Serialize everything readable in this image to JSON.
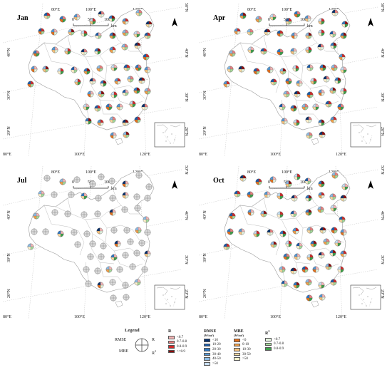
{
  "panels": [
    {
      "id": "jan",
      "label": "Jan",
      "origin": [
        0,
        0
      ],
      "grid": {
        "top": [
          "80°E",
          "100°E",
          "120°E"
        ],
        "bottom": [
          "80°E",
          "100°E",
          "120°E"
        ],
        "left": [
          "40°N",
          "30°N",
          "20°N"
        ],
        "right": [
          "50°N",
          "40°N",
          "30°N",
          "20°N"
        ]
      },
      "scale": {
        "ticks": [
          "0",
          "500",
          "1000"
        ],
        "unit": "km"
      },
      "stations": [
        [
          66,
          22
        ],
        [
          88,
          27
        ],
        [
          108,
          24
        ],
        [
          130,
          30
        ],
        [
          142,
          20
        ],
        [
          157,
          26
        ],
        [
          176,
          30
        ],
        [
          195,
          18
        ],
        [
          209,
          34
        ],
        [
          58,
          44
        ],
        [
          76,
          45
        ],
        [
          100,
          45
        ],
        [
          118,
          47
        ],
        [
          138,
          50
        ],
        [
          158,
          50
        ],
        [
          176,
          46
        ],
        [
          192,
          48
        ],
        [
          207,
          50
        ],
        [
          51,
          75
        ],
        [
          77,
          70
        ],
        [
          95,
          72
        ],
        [
          118,
          73
        ],
        [
          137,
          72
        ],
        [
          158,
          70
        ],
        [
          175,
          66
        ],
        [
          193,
          64
        ],
        [
          205,
          80
        ],
        [
          48,
          97
        ],
        [
          64,
          97
        ],
        [
          85,
          100
        ],
        [
          104,
          98
        ],
        [
          122,
          100
        ],
        [
          140,
          96
        ],
        [
          160,
          95
        ],
        [
          178,
          95
        ],
        [
          194,
          95
        ],
        [
          207,
          98
        ],
        [
          109,
          115
        ],
        [
          130,
          114
        ],
        [
          145,
          117
        ],
        [
          165,
          114
        ],
        [
          183,
          111
        ],
        [
          199,
          113
        ],
        [
          43,
          118
        ],
        [
          127,
          132
        ],
        [
          142,
          132
        ],
        [
          160,
          133
        ],
        [
          176,
          130
        ],
        [
          192,
          127
        ],
        [
          207,
          128
        ],
        [
          121,
          150
        ],
        [
          137,
          152
        ],
        [
          153,
          150
        ],
        [
          168,
          150
        ],
        [
          186,
          146
        ],
        [
          203,
          150
        ],
        [
          124,
          170
        ],
        [
          141,
          172
        ],
        [
          158,
          168
        ],
        [
          176,
          172
        ],
        [
          193,
          168
        ],
        [
          159,
          190
        ],
        [
          177,
          189
        ]
      ]
    },
    {
      "id": "apr",
      "label": "Apr",
      "origin": [
        275,
        0
      ],
      "grid": {
        "top": [
          "80°E",
          "100°E",
          "120°E"
        ],
        "bottom": [
          "80°E",
          "100°E",
          "120°E"
        ],
        "left": [
          "40°N",
          "30°N",
          "20°N"
        ],
        "right": [
          "50°N",
          "40°N",
          "30°N",
          "20°N"
        ]
      },
      "scale": {
        "ticks": [
          "0",
          "500",
          "1000"
        ],
        "unit": "km"
      },
      "stations": [
        [
          66,
          22
        ],
        [
          88,
          27
        ],
        [
          108,
          24
        ],
        [
          130,
          30
        ],
        [
          142,
          20
        ],
        [
          157,
          26
        ],
        [
          176,
          30
        ],
        [
          195,
          18
        ],
        [
          209,
          34
        ],
        [
          58,
          44
        ],
        [
          76,
          45
        ],
        [
          100,
          45
        ],
        [
          118,
          47
        ],
        [
          138,
          50
        ],
        [
          158,
          50
        ],
        [
          176,
          46
        ],
        [
          192,
          48
        ],
        [
          207,
          50
        ],
        [
          51,
          75
        ],
        [
          77,
          70
        ],
        [
          95,
          72
        ],
        [
          118,
          73
        ],
        [
          137,
          72
        ],
        [
          158,
          70
        ],
        [
          175,
          66
        ],
        [
          193,
          64
        ],
        [
          205,
          80
        ],
        [
          48,
          97
        ],
        [
          64,
          97
        ],
        [
          85,
          100
        ],
        [
          104,
          98
        ],
        [
          122,
          100
        ],
        [
          140,
          96
        ],
        [
          160,
          95
        ],
        [
          178,
          95
        ],
        [
          194,
          95
        ],
        [
          207,
          98
        ],
        [
          109,
          115
        ],
        [
          130,
          114
        ],
        [
          145,
          117
        ],
        [
          165,
          114
        ],
        [
          183,
          111
        ],
        [
          199,
          113
        ],
        [
          43,
          118
        ],
        [
          127,
          132
        ],
        [
          142,
          132
        ],
        [
          160,
          133
        ],
        [
          176,
          130
        ],
        [
          192,
          127
        ],
        [
          207,
          128
        ],
        [
          121,
          150
        ],
        [
          137,
          152
        ],
        [
          153,
          150
        ],
        [
          168,
          150
        ],
        [
          186,
          146
        ],
        [
          203,
          150
        ],
        [
          124,
          170
        ],
        [
          141,
          172
        ],
        [
          158,
          168
        ],
        [
          176,
          172
        ],
        [
          193,
          168
        ],
        [
          159,
          190
        ],
        [
          177,
          189
        ]
      ]
    },
    {
      "id": "jul",
      "label": "Jul",
      "origin": [
        0,
        228
      ],
      "grid": {
        "top": [
          "80°E",
          "100°E",
          "120°E"
        ],
        "bottom": [
          "80°E",
          "100°E",
          "120°E"
        ],
        "left": [
          "40°N",
          "30°N",
          "20°N"
        ],
        "right": [
          "50°N",
          "40°N",
          "30°N",
          "20°N"
        ]
      },
      "scale": {
        "ticks": [
          "0",
          "500",
          "1000"
        ],
        "unit": "km"
      },
      "stations": [
        [
          66,
          22
        ],
        [
          88,
          27
        ],
        [
          108,
          24
        ],
        [
          130,
          30
        ],
        [
          142,
          20
        ],
        [
          157,
          26
        ],
        [
          176,
          30
        ],
        [
          195,
          18
        ],
        [
          209,
          34
        ],
        [
          58,
          44
        ],
        [
          76,
          45
        ],
        [
          100,
          45
        ],
        [
          118,
          47
        ],
        [
          138,
          50
        ],
        [
          158,
          50
        ],
        [
          176,
          46
        ],
        [
          192,
          48
        ],
        [
          207,
          50
        ],
        [
          51,
          75
        ],
        [
          77,
          70
        ],
        [
          95,
          72
        ],
        [
          118,
          73
        ],
        [
          137,
          72
        ],
        [
          158,
          70
        ],
        [
          175,
          66
        ],
        [
          193,
          64
        ],
        [
          205,
          80
        ],
        [
          48,
          97
        ],
        [
          64,
          97
        ],
        [
          85,
          100
        ],
        [
          104,
          98
        ],
        [
          122,
          100
        ],
        [
          140,
          96
        ],
        [
          160,
          95
        ],
        [
          178,
          95
        ],
        [
          194,
          95
        ],
        [
          207,
          98
        ],
        [
          109,
          115
        ],
        [
          130,
          114
        ],
        [
          145,
          117
        ],
        [
          165,
          114
        ],
        [
          183,
          111
        ],
        [
          199,
          113
        ],
        [
          43,
          118
        ],
        [
          127,
          132
        ],
        [
          142,
          132
        ],
        [
          160,
          133
        ],
        [
          176,
          130
        ],
        [
          192,
          127
        ],
        [
          207,
          128
        ],
        [
          121,
          150
        ],
        [
          137,
          152
        ],
        [
          153,
          150
        ],
        [
          168,
          150
        ],
        [
          186,
          146
        ],
        [
          203,
          150
        ],
        [
          124,
          170
        ],
        [
          141,
          172
        ],
        [
          158,
          168
        ],
        [
          176,
          172
        ],
        [
          193,
          168
        ],
        [
          159,
          190
        ],
        [
          177,
          189
        ]
      ]
    },
    {
      "id": "oct",
      "label": "Oct",
      "origin": [
        275,
        228
      ],
      "grid": {
        "top": [
          "80°E",
          "100°E",
          "120°E"
        ],
        "bottom": [
          "80°E",
          "100°E",
          "120°E"
        ],
        "left": [
          "40°N",
          "30°N",
          "20°N"
        ],
        "right": [
          "50°N",
          "40°N",
          "30°N",
          "20°N"
        ]
      },
      "scale": {
        "ticks": [
          "0",
          "500",
          "1000"
        ],
        "unit": "km"
      },
      "stations": [
        [
          66,
          22
        ],
        [
          88,
          27
        ],
        [
          108,
          24
        ],
        [
          130,
          30
        ],
        [
          142,
          20
        ],
        [
          157,
          26
        ],
        [
          176,
          30
        ],
        [
          195,
          18
        ],
        [
          209,
          34
        ],
        [
          58,
          44
        ],
        [
          76,
          45
        ],
        [
          100,
          45
        ],
        [
          118,
          47
        ],
        [
          138,
          50
        ],
        [
          158,
          50
        ],
        [
          176,
          46
        ],
        [
          192,
          48
        ],
        [
          207,
          50
        ],
        [
          51,
          75
        ],
        [
          77,
          70
        ],
        [
          95,
          72
        ],
        [
          118,
          73
        ],
        [
          137,
          72
        ],
        [
          158,
          70
        ],
        [
          175,
          66
        ],
        [
          193,
          64
        ],
        [
          205,
          80
        ],
        [
          48,
          97
        ],
        [
          64,
          97
        ],
        [
          85,
          100
        ],
        [
          104,
          98
        ],
        [
          122,
          100
        ],
        [
          140,
          96
        ],
        [
          160,
          95
        ],
        [
          178,
          95
        ],
        [
          194,
          95
        ],
        [
          207,
          98
        ],
        [
          109,
          115
        ],
        [
          130,
          114
        ],
        [
          145,
          117
        ],
        [
          165,
          114
        ],
        [
          183,
          111
        ],
        [
          199,
          113
        ],
        [
          43,
          118
        ],
        [
          127,
          132
        ],
        [
          142,
          132
        ],
        [
          160,
          133
        ],
        [
          176,
          130
        ],
        [
          192,
          127
        ],
        [
          207,
          128
        ],
        [
          121,
          150
        ],
        [
          137,
          152
        ],
        [
          153,
          150
        ],
        [
          168,
          150
        ],
        [
          186,
          146
        ],
        [
          203,
          150
        ],
        [
          124,
          170
        ],
        [
          141,
          172
        ],
        [
          158,
          168
        ],
        [
          176,
          172
        ],
        [
          193,
          168
        ],
        [
          159,
          190
        ],
        [
          177,
          189
        ]
      ]
    }
  ],
  "legend": {
    "title": "Legend",
    "key": {
      "rmse": "RMSE",
      "r": "R",
      "mbe": "MBE",
      "r2": "R",
      "r2_sup": "2"
    },
    "r": {
      "title": "R",
      "items": [
        {
          "label": "<0.7",
          "color": "#f4b6b6"
        },
        {
          "label": "0.7-0.8",
          "color": "#e98080"
        },
        {
          "label": "0.8-0.9",
          "color": "#d02a2a"
        },
        {
          "label": ">=0.9",
          "color": "#8e0d0d"
        }
      ]
    },
    "rmse": {
      "title": "RMSE",
      "unit": "(W/m²)",
      "items": [
        {
          "label": "<10",
          "color": "#08306b"
        },
        {
          "label": "10-20",
          "color": "#1a5ba8"
        },
        {
          "label": "20-30",
          "color": "#2f78c2"
        },
        {
          "label": "30-40",
          "color": "#5597d3"
        },
        {
          "label": "40-50",
          "color": "#8cbce5"
        },
        {
          "label": ">50",
          "color": "#c7def2"
        }
      ]
    },
    "mbe": {
      "title": "MBE",
      "unit": "(W/m²)",
      "items": [
        {
          "label": "<0",
          "color": "#e5711d"
        },
        {
          "label": "0-10",
          "color": "#f29f48"
        },
        {
          "label": "10-30",
          "color": "#f7c27d"
        },
        {
          "label": "30-50",
          "color": "#fadaa0"
        },
        {
          "label": ">50",
          "color": "#fff2cc"
        }
      ]
    },
    "r2": {
      "title": "R",
      "title_sup": "2",
      "items": [
        {
          "label": "<0.7",
          "color": "#e5f4df"
        },
        {
          "label": "0.7-0.8",
          "color": "#a5d99a"
        },
        {
          "label": "0.8-0.9",
          "color": "#3da04a"
        }
      ]
    }
  }
}
